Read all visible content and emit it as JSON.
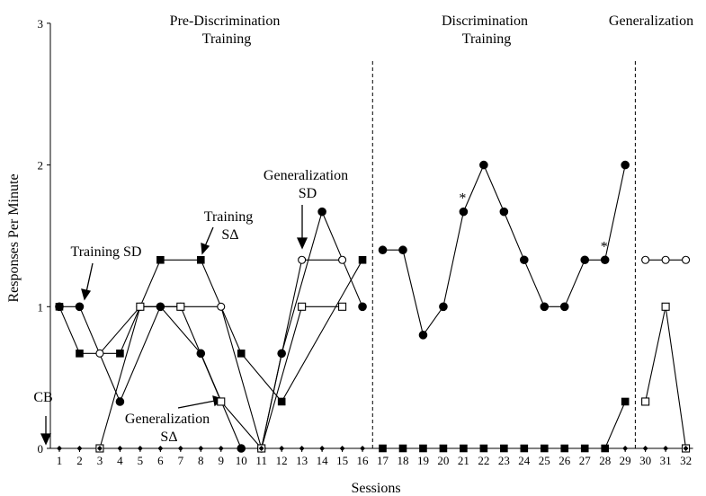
{
  "chart_data": {
    "type": "line",
    "xlabel": "Sessions",
    "ylabel": "Responses Per Minute",
    "xlim": [
      1,
      32
    ],
    "ylim": [
      0,
      3
    ],
    "x_ticks": [
      "1",
      "2",
      "3",
      "4",
      "5",
      "6",
      "7",
      "8",
      "9",
      "10",
      "11",
      "12",
      "13",
      "14",
      "15",
      "16",
      "17",
      "18",
      "19",
      "20",
      "21",
      "22",
      "23",
      "24",
      "25",
      "26",
      "27",
      "28",
      "29",
      "30",
      "31",
      "32"
    ],
    "y_ticks": [
      "0",
      "1",
      "2",
      "3"
    ],
    "phase_lines_after_session": [
      16,
      29
    ],
    "phase_labels": [
      {
        "id": "pre",
        "lines": [
          "Pre-Discrimination",
          "Training"
        ]
      },
      {
        "id": "disc",
        "lines": [
          "Discrimination",
          "Training"
        ]
      },
      {
        "id": "gen",
        "lines": [
          "Generalization"
        ]
      }
    ],
    "series": [
      {
        "key": "training_sd",
        "marker": "filled-circle",
        "segments": [
          [
            [
              1,
              1
            ],
            [
              2,
              1
            ],
            [
              4,
              0.33
            ],
            [
              6,
              1
            ],
            [
              8,
              0.67
            ],
            [
              10,
              0
            ]
          ],
          [
            [
              11,
              0
            ],
            [
              12,
              0.67
            ],
            [
              14,
              1.67
            ],
            [
              16,
              1
            ]
          ],
          [
            [
              17,
              1.4
            ],
            [
              18,
              1.4
            ],
            [
              19,
              0.8
            ],
            [
              20,
              1
            ],
            [
              21,
              1.67
            ],
            [
              22,
              2
            ],
            [
              23,
              1.67
            ],
            [
              24,
              1.33
            ],
            [
              25,
              1
            ],
            [
              26,
              1
            ],
            [
              27,
              1.33
            ],
            [
              28,
              1.33
            ],
            [
              29,
              2
            ]
          ]
        ]
      },
      {
        "key": "training_sdelta",
        "marker": "filled-square",
        "segments": [
          [
            [
              1,
              1
            ],
            [
              2,
              0.67
            ],
            [
              4,
              0.67
            ],
            [
              6,
              1.33
            ],
            [
              8,
              1.33
            ],
            [
              10,
              0.67
            ],
            [
              12,
              0.33
            ],
            [
              16,
              1.33
            ]
          ],
          [
            [
              17,
              0
            ],
            [
              18,
              0
            ],
            [
              19,
              0
            ],
            [
              20,
              0
            ],
            [
              21,
              0
            ],
            [
              22,
              0
            ],
            [
              23,
              0
            ],
            [
              24,
              0
            ],
            [
              25,
              0
            ],
            [
              26,
              0
            ],
            [
              27,
              0
            ],
            [
              28,
              0
            ],
            [
              29,
              0.33
            ]
          ]
        ]
      },
      {
        "key": "generalization_sd",
        "marker": "open-circle",
        "segments": [
          [
            [
              3,
              0.67
            ],
            [
              5,
              1
            ],
            [
              7,
              1
            ],
            [
              9,
              1
            ],
            [
              11,
              0
            ],
            [
              13,
              1.33
            ],
            [
              15,
              1.33
            ]
          ],
          [
            [
              30,
              1.33
            ],
            [
              31,
              1.33
            ],
            [
              32,
              1.33
            ]
          ]
        ]
      },
      {
        "key": "generalization_sdelta",
        "marker": "open-square",
        "segments": [
          [
            [
              3,
              0
            ],
            [
              5,
              1
            ],
            [
              7,
              1
            ],
            [
              9,
              0.33
            ],
            [
              11,
              0
            ],
            [
              13,
              1
            ],
            [
              15,
              1
            ]
          ],
          [
            [
              30,
              0.33
            ],
            [
              31,
              1
            ],
            [
              32,
              0
            ]
          ]
        ]
      },
      {
        "key": "cb",
        "marker": "small-diamond",
        "segments": [
          [
            [
              1,
              0
            ],
            [
              2,
              0
            ],
            [
              3,
              0
            ],
            [
              4,
              0
            ],
            [
              5,
              0
            ],
            [
              6,
              0
            ],
            [
              7,
              0
            ],
            [
              8,
              0
            ],
            [
              9,
              0
            ],
            [
              10,
              0
            ],
            [
              11,
              0
            ],
            [
              12,
              0
            ],
            [
              13,
              0
            ],
            [
              14,
              0
            ],
            [
              15,
              0
            ],
            [
              16,
              0
            ],
            [
              17,
              0
            ],
            [
              18,
              0
            ],
            [
              19,
              0
            ],
            [
              20,
              0
            ],
            [
              21,
              0
            ],
            [
              22,
              0
            ],
            [
              23,
              0
            ],
            [
              24,
              0
            ],
            [
              25,
              0
            ],
            [
              26,
              0
            ],
            [
              27,
              0
            ],
            [
              28,
              0
            ],
            [
              29,
              0
            ],
            [
              30,
              0
            ],
            [
              31,
              0
            ],
            [
              32,
              0
            ]
          ]
        ]
      }
    ],
    "annotations": [
      {
        "id": "ann-training-sd",
        "lines": [
          "Training SD"
        ]
      },
      {
        "id": "ann-training-sdelta",
        "lines": [
          "Training",
          "SΔ"
        ]
      },
      {
        "id": "ann-generalization-sd",
        "lines": [
          "Generalization",
          "SD"
        ]
      },
      {
        "id": "ann-generalization-sdelta",
        "lines": [
          "Generalization",
          "SΔ"
        ]
      },
      {
        "id": "ann-cb",
        "lines": [
          "CB"
        ]
      }
    ],
    "asterisks": [
      {
        "x": 21,
        "y": 1.67,
        "text": "*"
      },
      {
        "x": 28,
        "y": 1.33,
        "text": "*"
      }
    ]
  }
}
